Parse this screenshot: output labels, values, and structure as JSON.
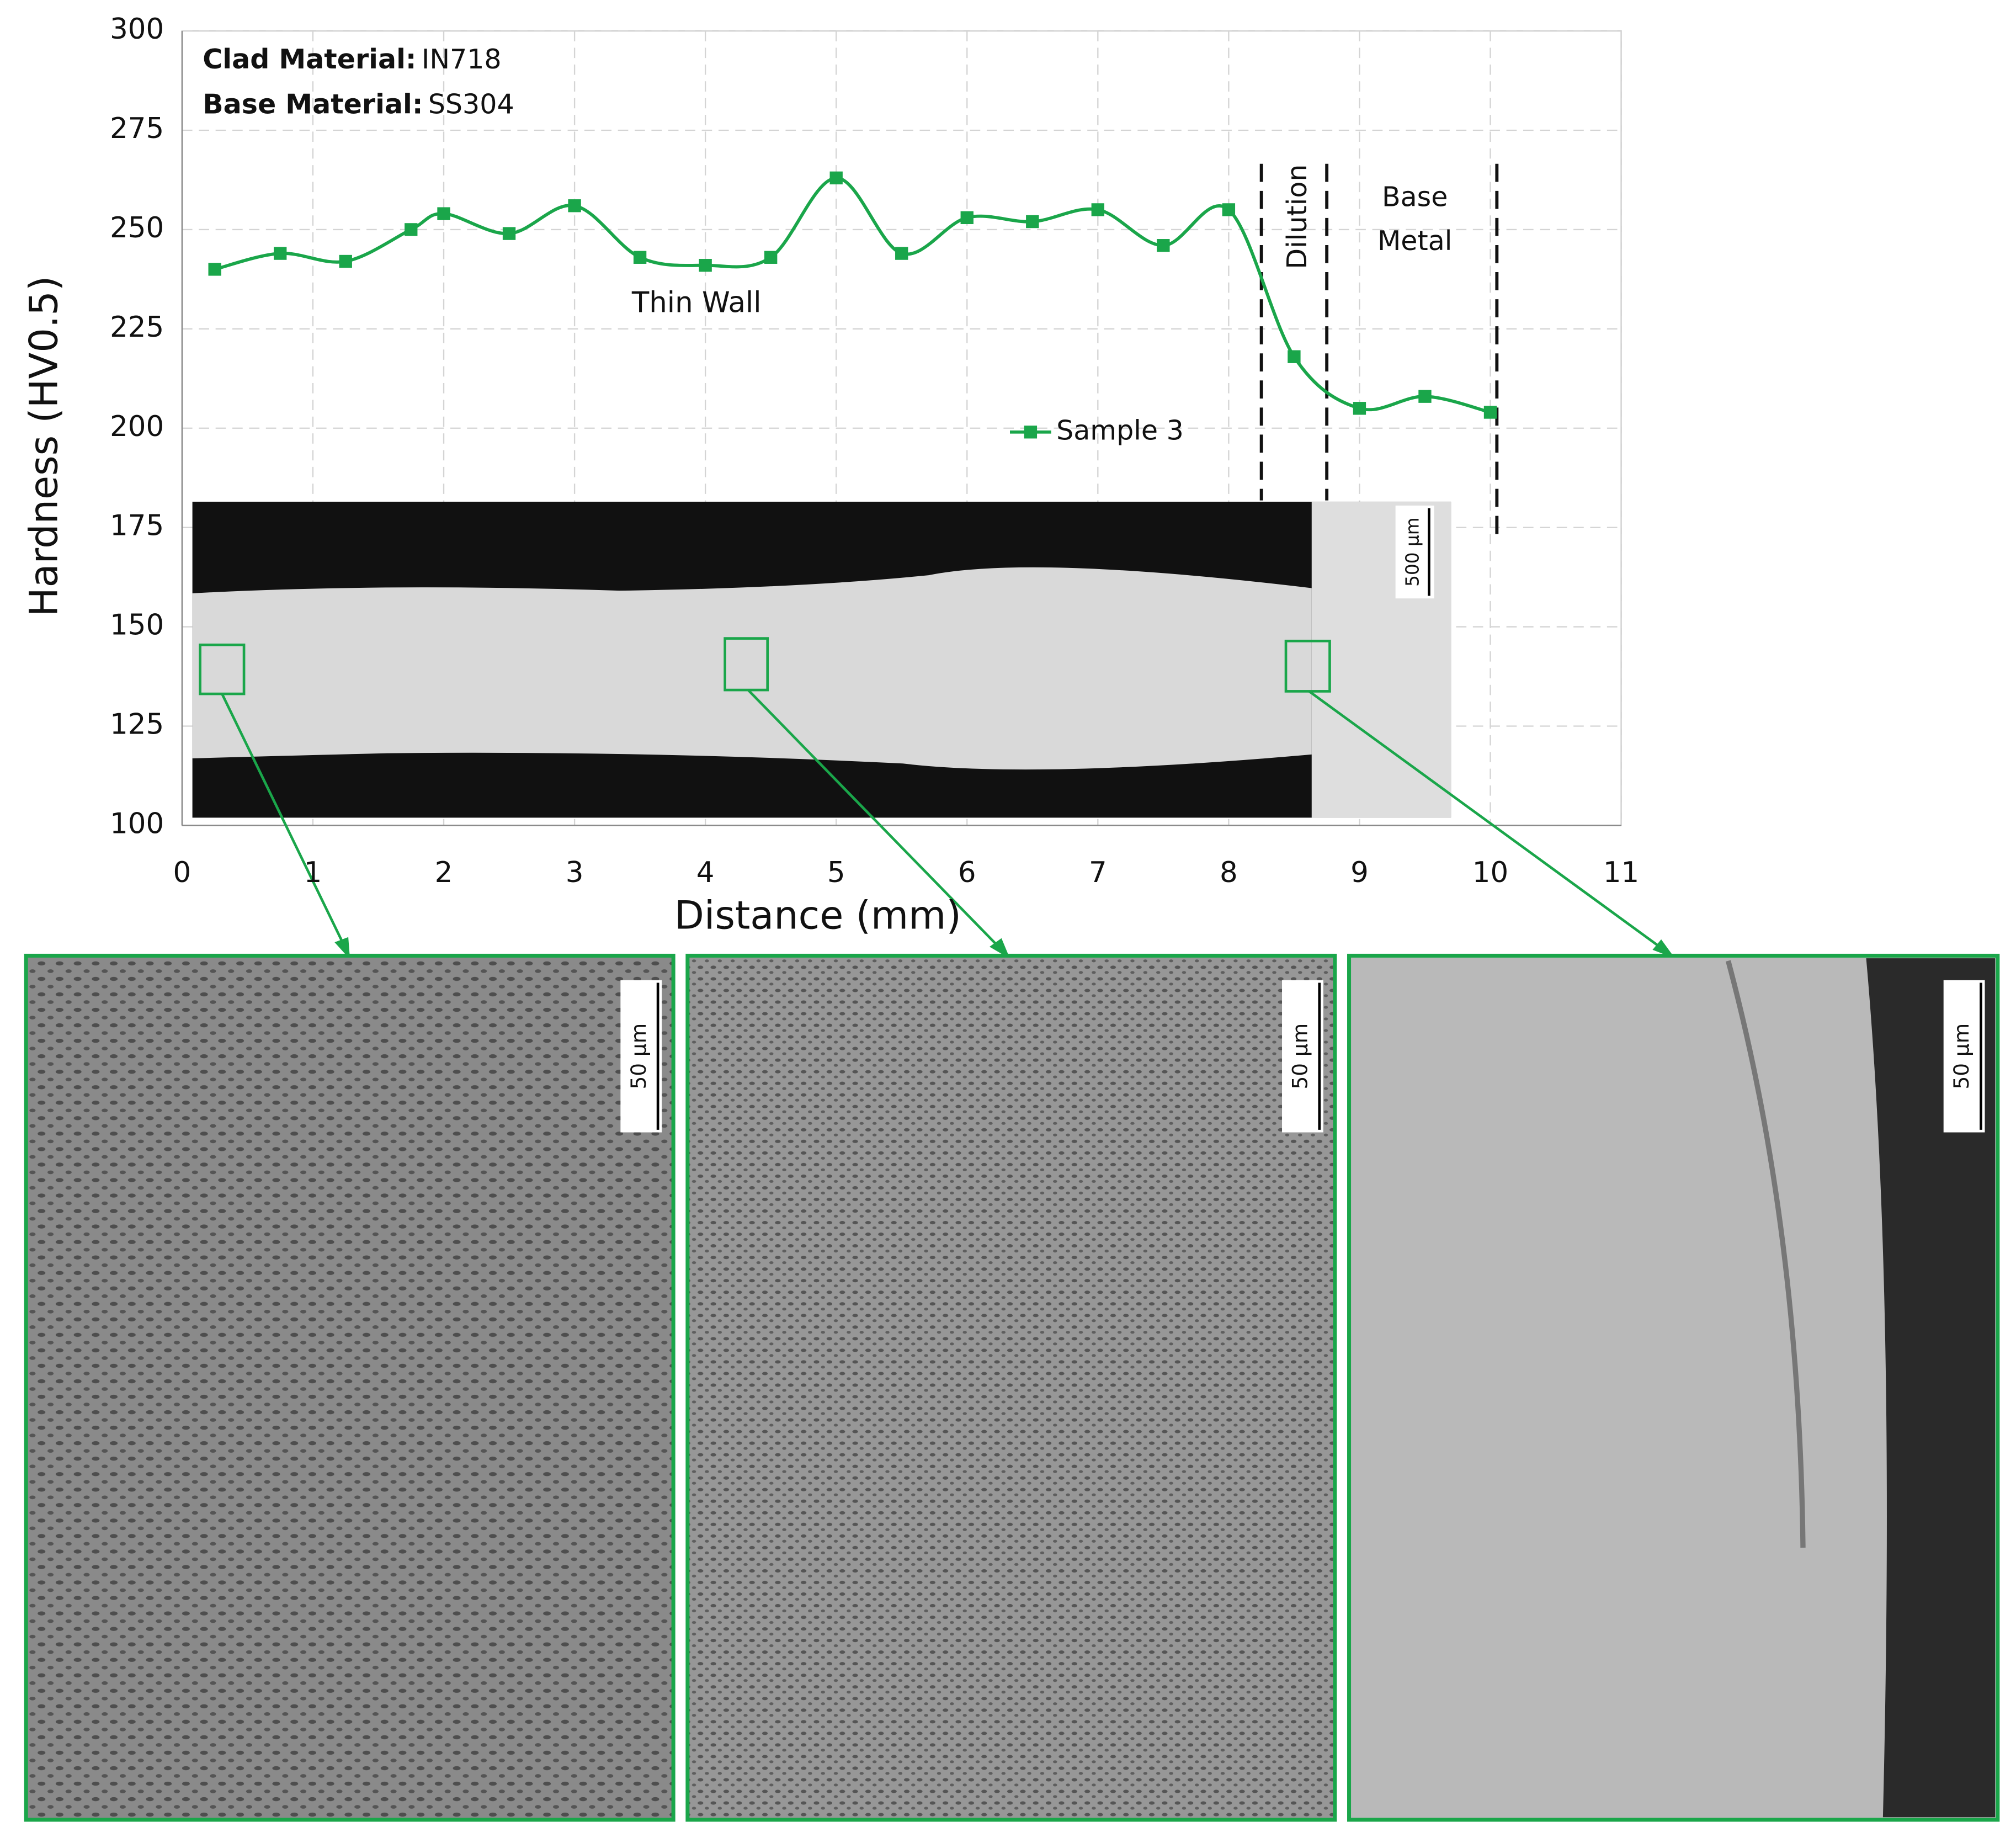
{
  "chart_data": {
    "type": "line",
    "x_label": "Distance (mm)",
    "y_label": "Hardness  (HV0.5)",
    "x": [
      0.25,
      0.75,
      1.25,
      1.75,
      2,
      2.5,
      3,
      3.5,
      4,
      4.5,
      5,
      5.5,
      6,
      6.5,
      7,
      7.5,
      8,
      8.5,
      9,
      9.5,
      10
    ],
    "series": [
      {
        "name": "Sample 3",
        "color": "#1aa64a",
        "values": [
          240,
          244,
          242,
          250,
          254,
          249,
          256,
          243,
          241,
          243,
          263,
          244,
          253,
          252,
          255,
          246,
          255,
          218,
          205,
          208,
          204
        ]
      }
    ],
    "xlim": [
      0,
      11
    ],
    "ylim": [
      100,
      300
    ],
    "xticks": [
      0,
      1,
      2,
      3,
      4,
      5,
      6,
      7,
      8,
      9,
      10,
      11
    ],
    "yticks": [
      100,
      125,
      150,
      175,
      200,
      225,
      250,
      275,
      300
    ],
    "grid": true,
    "zone_boundaries": [
      8.25,
      8.75,
      10.05
    ],
    "annotations": {
      "clad_label": "Clad Material:",
      "clad_value": "IN718",
      "base_label": "Base Material:",
      "base_value": "SS304",
      "thin_wall": "Thin Wall",
      "dilution": "Dilution",
      "base_metal": [
        "Base",
        "Metal"
      ]
    },
    "micrographs": {
      "overview_scale": "500 µm",
      "panel_scales": [
        "50 µm",
        "50 µm",
        "50 µm"
      ]
    }
  }
}
